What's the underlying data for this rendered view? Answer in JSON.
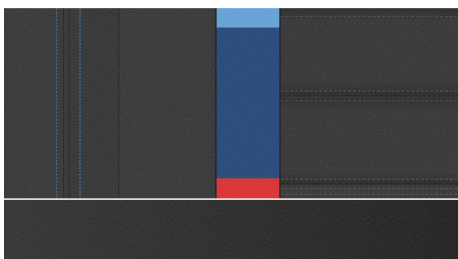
{
  "colors": {
    "leather": "#262626",
    "leather_dark": "#1e1e1e",
    "leather_bottom": "#181818",
    "blue_stitch": "#2f6fb5",
    "gray_stitch": "#555555",
    "m_light_blue": "#5aa0dc",
    "m_dark_blue": "#143a73",
    "m_red": "#e02020",
    "divider": "#f2f2f2"
  }
}
